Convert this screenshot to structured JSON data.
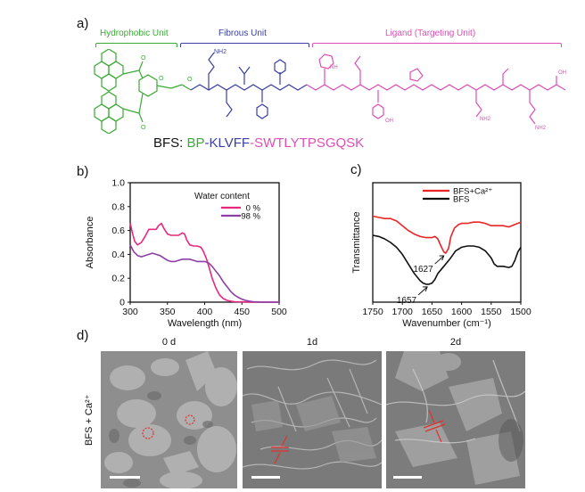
{
  "panel_a": {
    "label": "a)",
    "units": [
      {
        "name": "Hydrophobic Unit",
        "color": "#3aa935"
      },
      {
        "name": "Fibrous Unit",
        "color": "#3a3fa3"
      },
      {
        "name": "Ligand (Targeting Unit)",
        "color": "#dd4fb4"
      }
    ],
    "sequence": {
      "prefix": "BFS: ",
      "part1": "BP",
      "sep1": "-",
      "part2": "KLVFF",
      "sep2": "-",
      "part3": "SWTLYTPSGQSK"
    },
    "structure_labels": {
      "hydrophobic": [
        "O",
        "O",
        "O",
        "O"
      ],
      "fibrous": [
        "NH2",
        "H",
        "N",
        "O",
        "H",
        "N",
        "O",
        "H",
        "N",
        "O",
        "H",
        "N",
        "O",
        "H",
        "N",
        "O"
      ],
      "ligand": [
        "NH",
        "OH",
        "HO",
        "OH",
        "HO",
        "OH",
        "OH",
        "NH2",
        "OH",
        "OH",
        "NH2"
      ]
    },
    "colors": {
      "green": "#3aa935",
      "blue": "#3a3fa3",
      "pink": "#dd4fb4",
      "black": "#111111"
    }
  },
  "chart_data": [
    {
      "panel": "b)",
      "type": "line",
      "title": "",
      "xlabel": "Wavelength (nm)",
      "ylabel": "Absorbance",
      "xlim": [
        300,
        500
      ],
      "ylim": [
        0,
        1.0
      ],
      "xticks": [
        "300",
        "350",
        "400",
        "450",
        "500"
      ],
      "yticks": [
        "0",
        "0.2",
        "0.4",
        "0.6",
        "0.8",
        "1.0"
      ],
      "legend_title": "Water content",
      "legend_position": "top-right",
      "grid": false,
      "series": [
        {
          "name": "0 %",
          "color": "#e8287f",
          "x": [
            300,
            303,
            306,
            310,
            315,
            320,
            325,
            330,
            335,
            338,
            342,
            345,
            350,
            355,
            360,
            365,
            370,
            373,
            376,
            380,
            385,
            390,
            395,
            398,
            402,
            406,
            410,
            415,
            420,
            425,
            430,
            435,
            440,
            450,
            460,
            470,
            480,
            500
          ],
          "y": [
            0.66,
            0.58,
            0.51,
            0.48,
            0.5,
            0.55,
            0.61,
            0.61,
            0.61,
            0.64,
            0.66,
            0.62,
            0.57,
            0.56,
            0.56,
            0.56,
            0.58,
            0.57,
            0.52,
            0.48,
            0.47,
            0.47,
            0.46,
            0.43,
            0.37,
            0.29,
            0.2,
            0.12,
            0.06,
            0.03,
            0.015,
            0.008,
            0.004,
            0.002,
            0.001,
            0.0,
            0.0,
            0.0
          ]
        },
        {
          "name": "98 %",
          "color": "#8e3fa5",
          "x": [
            300,
            305,
            310,
            315,
            320,
            325,
            330,
            335,
            340,
            345,
            350,
            355,
            360,
            365,
            370,
            375,
            380,
            385,
            390,
            395,
            400,
            405,
            410,
            415,
            420,
            425,
            430,
            435,
            440,
            445,
            450,
            455,
            460,
            465,
            470,
            475,
            480,
            500
          ],
          "y": [
            0.48,
            0.42,
            0.39,
            0.38,
            0.39,
            0.4,
            0.41,
            0.4,
            0.39,
            0.37,
            0.35,
            0.34,
            0.34,
            0.35,
            0.36,
            0.36,
            0.36,
            0.35,
            0.34,
            0.34,
            0.34,
            0.33,
            0.3,
            0.26,
            0.22,
            0.17,
            0.13,
            0.09,
            0.06,
            0.04,
            0.025,
            0.015,
            0.008,
            0.004,
            0.002,
            0.001,
            0.0,
            0.0
          ]
        }
      ]
    },
    {
      "panel": "c)",
      "type": "line",
      "title": "",
      "xlabel": "Wavenumber (cm⁻¹)",
      "ylabel": "Transmittance",
      "xlim": [
        1750,
        1500
      ],
      "ylim": [
        0,
        1
      ],
      "xticks": [
        "1750",
        "1700",
        "1650",
        "1600",
        "1550",
        "1500"
      ],
      "yticks": [],
      "legend_position": "top-center",
      "grid": false,
      "annotations": [
        {
          "text": "1627",
          "x": 1627,
          "series": "BFS+Ca²⁺"
        },
        {
          "text": "1657",
          "x": 1657,
          "series": "BFS"
        }
      ],
      "series": [
        {
          "name": "BFS+Ca²⁺",
          "color": "#ec2427",
          "x": [
            1750,
            1740,
            1730,
            1720,
            1710,
            1700,
            1690,
            1680,
            1670,
            1660,
            1650,
            1645,
            1640,
            1635,
            1630,
            1627,
            1622,
            1618,
            1612,
            1605,
            1600,
            1590,
            1580,
            1570,
            1560,
            1550,
            1540,
            1530,
            1520,
            1510,
            1500
          ],
          "y": [
            0.72,
            0.71,
            0.7,
            0.7,
            0.68,
            0.64,
            0.6,
            0.57,
            0.55,
            0.54,
            0.54,
            0.55,
            0.53,
            0.47,
            0.42,
            0.41,
            0.45,
            0.55,
            0.62,
            0.65,
            0.66,
            0.66,
            0.67,
            0.67,
            0.66,
            0.64,
            0.64,
            0.64,
            0.63,
            0.65,
            0.67
          ]
        },
        {
          "name": "BFS",
          "color": "#111111",
          "x": [
            1750,
            1740,
            1735,
            1730,
            1720,
            1710,
            1700,
            1690,
            1680,
            1670,
            1665,
            1660,
            1655,
            1650,
            1645,
            1640,
            1630,
            1620,
            1610,
            1600,
            1590,
            1580,
            1570,
            1560,
            1550,
            1545,
            1540,
            1530,
            1520,
            1515,
            1510,
            1505,
            1500
          ],
          "y": [
            0.56,
            0.55,
            0.54,
            0.53,
            0.5,
            0.46,
            0.4,
            0.32,
            0.24,
            0.18,
            0.16,
            0.15,
            0.15,
            0.16,
            0.19,
            0.24,
            0.3,
            0.36,
            0.43,
            0.46,
            0.47,
            0.47,
            0.46,
            0.43,
            0.37,
            0.32,
            0.3,
            0.3,
            0.29,
            0.3,
            0.35,
            0.42,
            0.46
          ]
        }
      ]
    }
  ],
  "panel_b": {
    "label": "b)"
  },
  "panel_c": {
    "label": "c)"
  },
  "panel_d": {
    "label": "d)",
    "row_label": "BFS + Ca²⁺",
    "columns": [
      "0 d",
      "1d",
      "2d"
    ],
    "scale_bar_color": "#ffffff",
    "marker_color": "#e03030"
  }
}
